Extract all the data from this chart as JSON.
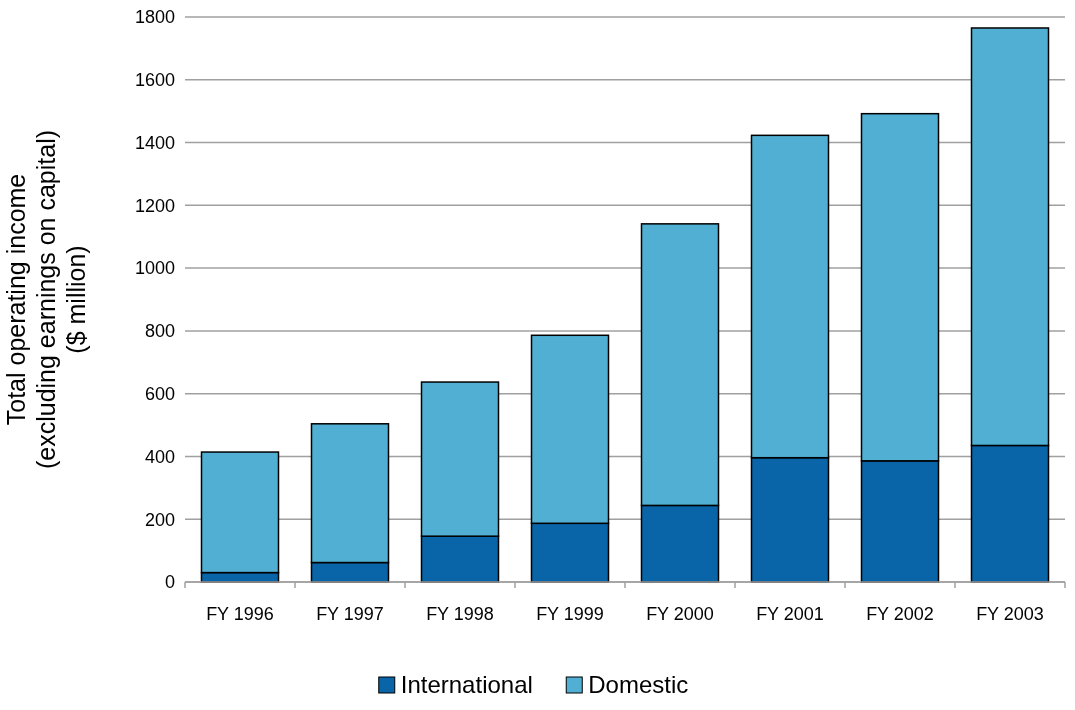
{
  "chart_data": {
    "type": "bar",
    "stacked": true,
    "ylabel": "Total operating income\n(excluding earnings on capital)\n($ million)",
    "categories": [
      "FY 1996",
      "FY 1997",
      "FY 1998",
      "FY 1999",
      "FY 2000",
      "FY 2001",
      "FY 2002",
      "FY 2003"
    ],
    "series": [
      {
        "name": "International",
        "color": "#0964a8",
        "values": [
          30,
          62,
          146,
          187,
          244,
          396,
          386,
          435
        ]
      },
      {
        "name": "Domestic",
        "color": "#50afd2",
        "values": [
          384,
          442,
          491,
          599,
          897,
          1027,
          1106,
          1330
        ]
      }
    ],
    "ylim": [
      0,
      1800
    ],
    "yticks": [
      0,
      200,
      400,
      600,
      800,
      1000,
      1200,
      1400,
      1600,
      1800
    ],
    "grid": "y",
    "legend": "bottom"
  }
}
